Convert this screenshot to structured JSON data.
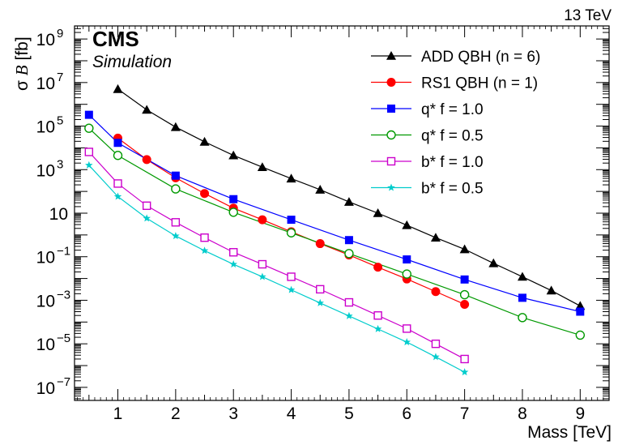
{
  "header": {
    "energy": "13 TeV",
    "experiment": "CMS",
    "status": "Simulation"
  },
  "chart_data": {
    "type": "line",
    "xlabel": "Mass [TeV]",
    "ylabel_sigma": "σ",
    "ylabel_b": "B",
    "ylabel_unit": "[fb]",
    "xlim": [
      0.25,
      9.5
    ],
    "ylim_log10": [
      -7.6,
      9.6
    ],
    "y_scale": "log",
    "grid": false,
    "legend_position": "top-right",
    "x_ticks": [
      1,
      2,
      3,
      4,
      5,
      6,
      7,
      8,
      9
    ],
    "x_tick_labels": [
      "1",
      "2",
      "3",
      "4",
      "5",
      "6",
      "7",
      "8",
      "9"
    ],
    "y_ticks": [
      {
        "exp": 9,
        "base": "10",
        "sup": "9"
      },
      {
        "exp": 7,
        "base": "10",
        "sup": "7"
      },
      {
        "exp": 5,
        "base": "10",
        "sup": "5"
      },
      {
        "exp": 3,
        "base": "10",
        "sup": "3"
      },
      {
        "exp": 1,
        "base": "10",
        "sup": ""
      },
      {
        "exp": -1,
        "base": "10",
        "sup": "−1"
      },
      {
        "exp": -3,
        "base": "10",
        "sup": "−3"
      },
      {
        "exp": -5,
        "base": "10",
        "sup": "−5"
      },
      {
        "exp": -7,
        "base": "10",
        "sup": "−7"
      }
    ],
    "series": [
      {
        "name": "ADD QBH (n = 6)",
        "color": "#000000",
        "marker": "triangle-filled",
        "x": [
          1,
          1.5,
          2,
          2.5,
          3,
          3.5,
          4,
          4.5,
          5,
          5.5,
          6,
          6.5,
          7,
          7.5,
          8,
          8.5,
          9
        ],
        "y": [
          5000000.0,
          560000.0,
          90000.0,
          19000.0,
          4500.0,
          1300.0,
          390.0,
          120.0,
          33,
          10,
          2.8,
          0.75,
          0.22,
          0.05,
          0.012,
          0.0028,
          0.00055
        ]
      },
      {
        "name": "RS1 QBH (n = 1)",
        "color": "#ff0000",
        "marker": "circle-filled",
        "x": [
          1,
          1.5,
          2,
          2.5,
          3,
          3.5,
          4,
          4.5,
          5,
          5.5,
          6,
          6.5,
          7
        ],
        "y": [
          28000.0,
          2900.0,
          420.0,
          80,
          17,
          5.0,
          1.4,
          0.4,
          0.12,
          0.033,
          0.0095,
          0.0025,
          0.00065
        ]
      },
      {
        "name": "q* f = 1.0",
        "color": "#0000ff",
        "marker": "square-filled",
        "x": [
          0.5,
          1,
          2,
          3,
          4,
          5,
          6,
          7,
          8,
          9
        ],
        "y": [
          330000.0,
          17000.0,
          530.0,
          44,
          5.0,
          0.58,
          0.075,
          0.009,
          0.0013,
          0.0003
        ]
      },
      {
        "name": "q* f = 0.5",
        "color": "#009900",
        "marker": "circle-open",
        "x": [
          0.5,
          1,
          2,
          3,
          4,
          5,
          6,
          7,
          8,
          9
        ],
        "y": [
          80000.0,
          4500.0,
          130.0,
          11,
          1.25,
          0.14,
          0.016,
          0.0018,
          0.00016,
          2.5e-05
        ]
      },
      {
        "name": "b* f = 1.0",
        "color": "#cc00cc",
        "marker": "square-open",
        "x": [
          0.5,
          1,
          1.5,
          2,
          2.5,
          3,
          3.5,
          4,
          4.5,
          5,
          5.5,
          6,
          6.5,
          7
        ],
        "y": [
          6500.0,
          230.0,
          22,
          3.8,
          0.75,
          0.16,
          0.045,
          0.012,
          0.0032,
          0.0008,
          0.0002,
          5e-05,
          1e-05,
          2e-06
        ]
      },
      {
        "name": "b* f = 0.5",
        "color": "#00cccc",
        "marker": "star",
        "x": [
          0.5,
          1,
          1.5,
          2,
          2.5,
          3,
          3.5,
          4,
          4.5,
          5,
          5.5,
          6,
          6.5,
          7
        ],
        "y": [
          1600.0,
          58,
          5.8,
          0.9,
          0.19,
          0.045,
          0.012,
          0.003,
          0.00075,
          0.00019,
          4.8e-05,
          1.2e-05,
          2.5e-06,
          5e-07
        ]
      }
    ]
  }
}
